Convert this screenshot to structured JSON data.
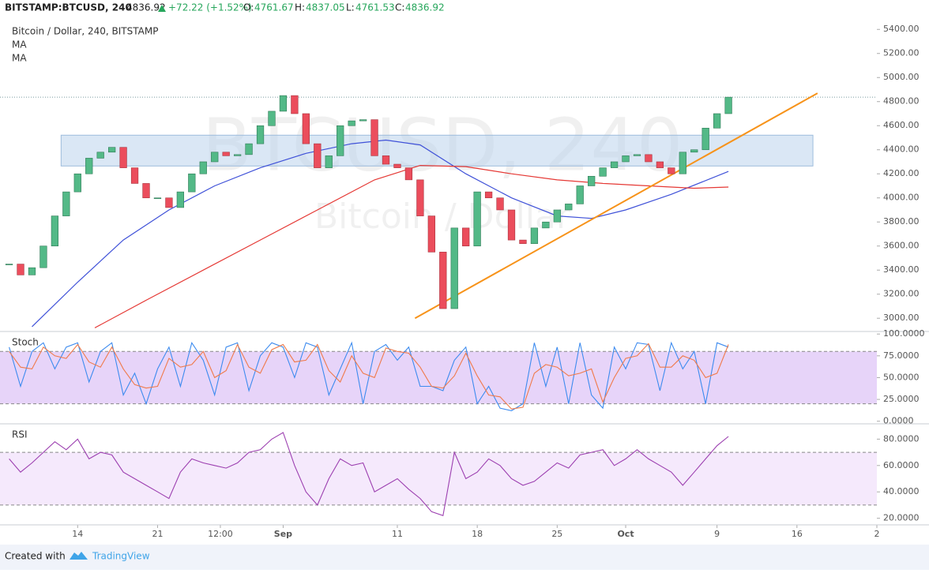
{
  "header": {
    "symbol": "BITSTAMP:BTCUSD, 240",
    "last": "4836.92",
    "change": "+72.22 (+1.52%)",
    "o_label": "O:",
    "open": "4761.67",
    "h_label": "H:",
    "high": "4837.05",
    "l_label": "L:",
    "low": "4761.53",
    "c_label": "C:",
    "close": "4836.92"
  },
  "chart_data": [
    {
      "type": "candlestick",
      "legend_title": "Bitcoin / Dollar, 240, BITSTAMP",
      "watermark": "BTCUSD, 240",
      "watermark_sub": "Bitcoin / Dollar",
      "x": [
        8,
        9,
        10,
        11,
        12,
        13,
        14,
        15,
        16,
        17,
        18,
        19,
        20,
        21,
        22,
        23,
        24,
        25,
        26,
        27,
        28,
        29,
        30,
        31,
        32,
        33,
        34,
        35,
        36,
        37,
        38,
        39,
        40,
        41,
        42,
        43,
        44,
        45,
        46,
        47,
        48,
        49,
        50,
        51,
        52,
        53,
        54,
        55,
        56,
        57,
        58,
        59,
        60,
        61,
        62,
        63,
        64,
        65,
        66,
        67,
        68,
        69,
        70,
        71
      ],
      "values": [
        3450,
        3360,
        3420,
        3600,
        3850,
        4050,
        4200,
        4330,
        4380,
        4420,
        4250,
        4120,
        4000,
        4000,
        3920,
        4050,
        4200,
        4300,
        4380,
        4350,
        4360,
        4450,
        4600,
        4720,
        4850,
        4700,
        4450,
        4250,
        4350,
        4600,
        4640,
        4650,
        4350,
        4280,
        4250,
        4150,
        3850,
        3550,
        3080,
        3750,
        3600,
        4050,
        4000,
        3900,
        3650,
        3620,
        3750,
        3800,
        3900,
        3950,
        4100,
        4180,
        4250,
        4300,
        4350,
        4360,
        4300,
        4250,
        4200,
        4380,
        4400,
        4580,
        4700,
        4836.92
      ],
      "up_color": "#53b987",
      "down_color": "#eb4d5c",
      "series": [
        {
          "name": "MA",
          "color": "#3f51d8",
          "x": [
            10,
            14,
            18,
            22,
            26,
            30,
            34,
            38,
            41,
            44,
            48,
            52,
            56,
            59,
            62,
            66,
            71
          ],
          "values": [
            2930,
            3300,
            3650,
            3900,
            4100,
            4250,
            4370,
            4450,
            4480,
            4440,
            4200,
            4000,
            3850,
            3830,
            3900,
            4030,
            4220
          ]
        },
        {
          "name": "MA",
          "color": "#e53935",
          "x": [
            15.5,
            20,
            25,
            30,
            35,
            40,
            44,
            48,
            52,
            56,
            60,
            64,
            68,
            71
          ],
          "values": [
            2920,
            3150,
            3400,
            3650,
            3900,
            4150,
            4270,
            4260,
            4200,
            4150,
            4120,
            4100,
            4080,
            4090
          ]
        }
      ],
      "trendline": {
        "x": [
          43.55,
          78.8
        ],
        "values": [
          3000,
          4870
        ],
        "color": "#f7931a"
      },
      "zone": {
        "x": [
          12.55,
          78.4
        ],
        "values": [
          4265,
          4521
        ],
        "color": "#bbd4ec"
      },
      "xlim": [
        7.2,
        84.0
      ],
      "ylim": [
        2890,
        5500
      ],
      "yticks": [
        {
          "value": 3000,
          "label": "3000.00"
        },
        {
          "value": 3200,
          "label": "3200.00"
        },
        {
          "value": 3400,
          "label": "3400.00"
        },
        {
          "value": 3600,
          "label": "3600.00"
        },
        {
          "value": 3800,
          "label": "3800.00"
        },
        {
          "value": 4000,
          "label": "4000.00"
        },
        {
          "value": 4200,
          "label": "4200.00"
        },
        {
          "value": 4400,
          "label": "4400.00"
        },
        {
          "value": 4600,
          "label": "4600.00"
        },
        {
          "value": 4800,
          "label": "4800.00"
        },
        {
          "value": 5000,
          "label": "5000.00"
        },
        {
          "value": 5200,
          "label": "5200.00"
        },
        {
          "value": 5400,
          "label": "5400.00"
        }
      ],
      "xticks": [
        14,
        21,
        {
          "value": 26.5,
          "label": "12:00"
        },
        {
          "value": 32,
          "label": "Sep"
        },
        {
          "value": 42,
          "label": "11"
        },
        {
          "value": 49,
          "label": "18"
        },
        {
          "value": 56,
          "label": "25"
        },
        {
          "value": 62,
          "label": "Oct"
        },
        {
          "value": 70,
          "label": "9"
        },
        {
          "value": 77,
          "label": "16"
        },
        {
          "value": 84,
          "label": "2"
        }
      ]
    },
    {
      "type": "line",
      "title": "Stoch",
      "band": [
        20,
        80
      ],
      "band_color": "#e1c9f7",
      "x": [
        8,
        9,
        10,
        11,
        12,
        13,
        14,
        15,
        16,
        17,
        18,
        19,
        20,
        21,
        22,
        23,
        24,
        25,
        26,
        27,
        28,
        29,
        30,
        31,
        32,
        33,
        34,
        35,
        36,
        37,
        38,
        39,
        40,
        41,
        42,
        43,
        44,
        45,
        46,
        47,
        48,
        49,
        50,
        51,
        52,
        53,
        54,
        55,
        56,
        57,
        58,
        59,
        60,
        61,
        62,
        63,
        64,
        65,
        66,
        67,
        68,
        69,
        70,
        71
      ],
      "series": [
        {
          "color": "#3d8bef",
          "values": [
            85,
            40,
            80,
            90,
            60,
            85,
            90,
            45,
            80,
            90,
            30,
            55,
            20,
            60,
            85,
            40,
            90,
            70,
            30,
            85,
            90,
            35,
            75,
            90,
            85,
            50,
            90,
            85,
            30,
            60,
            90,
            20,
            80,
            88,
            70,
            85,
            40,
            40,
            35,
            70,
            85,
            20,
            40,
            15,
            12,
            20,
            90,
            40,
            85,
            20,
            90,
            30,
            15,
            85,
            60,
            90,
            88,
            35,
            90,
            60,
            80,
            20,
            90,
            85
          ]
        },
        {
          "color": "#f07a4a",
          "values": [
            80,
            62,
            60,
            85,
            75,
            72,
            88,
            68,
            62,
            85,
            60,
            42,
            38,
            40,
            72,
            62,
            65,
            80,
            50,
            58,
            88,
            62,
            55,
            82,
            88,
            68,
            70,
            88,
            58,
            45,
            75,
            55,
            50,
            84,
            80,
            78,
            62,
            40,
            38,
            52,
            78,
            52,
            30,
            28,
            14,
            16,
            55,
            65,
            62,
            52,
            55,
            60,
            22,
            50,
            72,
            75,
            89,
            62,
            62,
            75,
            70,
            50,
            55,
            88
          ]
        }
      ],
      "xlim": [
        7.2,
        84.0
      ],
      "ylim": [
        -3,
        102
      ],
      "yticks": [
        {
          "value": 0,
          "label": "0.0000"
        },
        {
          "value": 25,
          "label": "25.0000"
        },
        {
          "value": 50,
          "label": "50.0000"
        },
        {
          "value": 75,
          "label": "75.0000"
        },
        {
          "value": 100,
          "label": "100.0000"
        }
      ]
    },
    {
      "type": "line",
      "title": "RSI",
      "band": [
        30,
        70
      ],
      "band_color": "#f3e4fb",
      "x": [
        8,
        9,
        10,
        11,
        12,
        13,
        14,
        15,
        16,
        17,
        18,
        19,
        20,
        21,
        22,
        23,
        24,
        25,
        26,
        27,
        28,
        29,
        30,
        31,
        32,
        33,
        34,
        35,
        36,
        37,
        38,
        39,
        40,
        41,
        42,
        43,
        44,
        45,
        46,
        47,
        48,
        49,
        50,
        51,
        52,
        53,
        54,
        55,
        56,
        57,
        58,
        59,
        60,
        61,
        62,
        63,
        64,
        65,
        66,
        67,
        68,
        69,
        70,
        71
      ],
      "series": [
        {
          "color": "#9c3fb0",
          "values": [
            65,
            55,
            62,
            70,
            78,
            72,
            80,
            65,
            70,
            68,
            55,
            50,
            45,
            40,
            35,
            55,
            65,
            62,
            60,
            58,
            62,
            70,
            72,
            80,
            85,
            60,
            40,
            30,
            50,
            65,
            60,
            62,
            40,
            45,
            50,
            42,
            35,
            25,
            22,
            70,
            50,
            55,
            65,
            60,
            50,
            45,
            48,
            55,
            62,
            58,
            68,
            70,
            72,
            60,
            65,
            72,
            65,
            60,
            55,
            45,
            55,
            65,
            75,
            82
          ]
        }
      ],
      "xlim": [
        7.2,
        84.0
      ],
      "ylim": [
        15,
        91
      ],
      "yticks": [
        {
          "value": 20,
          "label": "20.0000"
        },
        {
          "value": 40,
          "label": "40.0000"
        },
        {
          "value": 60,
          "label": "60.0000"
        },
        {
          "value": 80,
          "label": "80.0000"
        }
      ]
    }
  ],
  "footer": {
    "created": "Created with",
    "brand": "TradingView"
  }
}
